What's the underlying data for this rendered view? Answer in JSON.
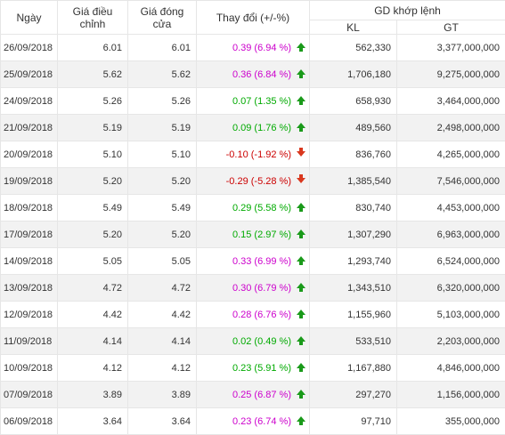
{
  "headers": {
    "date": "Ngày",
    "adjusted_price": "Giá điều chỉnh",
    "close_price": "Giá đóng cửa",
    "change": "Thay đổi (+/-%)",
    "matched_group": "GD khớp lệnh",
    "volume": "KL",
    "value": "GT"
  },
  "colors": {
    "up_text": "#cc00cc",
    "flat_text": "#00aa00",
    "down_text": "#cc0000",
    "up_arrow": "#1a9a1a",
    "down_arrow": "#d9381e"
  },
  "rows": [
    {
      "date": "26/09/2018",
      "adj": "6.01",
      "close": "6.01",
      "change": "0.39 (6.94 %)",
      "dir": "up",
      "kl": "562,330",
      "gt": "3,377,000,000"
    },
    {
      "date": "25/09/2018",
      "adj": "5.62",
      "close": "5.62",
      "change": "0.36 (6.84 %)",
      "dir": "up",
      "kl": "1,706,180",
      "gt": "9,275,000,000"
    },
    {
      "date": "24/09/2018",
      "adj": "5.26",
      "close": "5.26",
      "change": "0.07 (1.35 %)",
      "dir": "flat",
      "kl": "658,930",
      "gt": "3,464,000,000"
    },
    {
      "date": "21/09/2018",
      "adj": "5.19",
      "close": "5.19",
      "change": "0.09 (1.76 %)",
      "dir": "flat",
      "kl": "489,560",
      "gt": "2,498,000,000"
    },
    {
      "date": "20/09/2018",
      "adj": "5.10",
      "close": "5.10",
      "change": "-0.10 (-1.92 %)",
      "dir": "down",
      "kl": "836,760",
      "gt": "4,265,000,000"
    },
    {
      "date": "19/09/2018",
      "adj": "5.20",
      "close": "5.20",
      "change": "-0.29 (-5.28 %)",
      "dir": "down",
      "kl": "1,385,540",
      "gt": "7,546,000,000"
    },
    {
      "date": "18/09/2018",
      "adj": "5.49",
      "close": "5.49",
      "change": "0.29 (5.58 %)",
      "dir": "flat",
      "kl": "830,740",
      "gt": "4,453,000,000"
    },
    {
      "date": "17/09/2018",
      "adj": "5.20",
      "close": "5.20",
      "change": "0.15 (2.97 %)",
      "dir": "flat",
      "kl": "1,307,290",
      "gt": "6,963,000,000"
    },
    {
      "date": "14/09/2018",
      "adj": "5.05",
      "close": "5.05",
      "change": "0.33 (6.99 %)",
      "dir": "up",
      "kl": "1,293,740",
      "gt": "6,524,000,000"
    },
    {
      "date": "13/09/2018",
      "adj": "4.72",
      "close": "4.72",
      "change": "0.30 (6.79 %)",
      "dir": "up",
      "kl": "1,343,510",
      "gt": "6,320,000,000"
    },
    {
      "date": "12/09/2018",
      "adj": "4.42",
      "close": "4.42",
      "change": "0.28 (6.76 %)",
      "dir": "up",
      "kl": "1,155,960",
      "gt": "5,103,000,000"
    },
    {
      "date": "11/09/2018",
      "adj": "4.14",
      "close": "4.14",
      "change": "0.02 (0.49 %)",
      "dir": "flat",
      "kl": "533,510",
      "gt": "2,203,000,000"
    },
    {
      "date": "10/09/2018",
      "adj": "4.12",
      "close": "4.12",
      "change": "0.23 (5.91 %)",
      "dir": "flat",
      "kl": "1,167,880",
      "gt": "4,846,000,000"
    },
    {
      "date": "07/09/2018",
      "adj": "3.89",
      "close": "3.89",
      "change": "0.25 (6.87 %)",
      "dir": "up",
      "kl": "297,270",
      "gt": "1,156,000,000"
    },
    {
      "date": "06/09/2018",
      "adj": "3.64",
      "close": "3.64",
      "change": "0.23 (6.74 %)",
      "dir": "up",
      "kl": "97,710",
      "gt": "355,000,000"
    }
  ]
}
